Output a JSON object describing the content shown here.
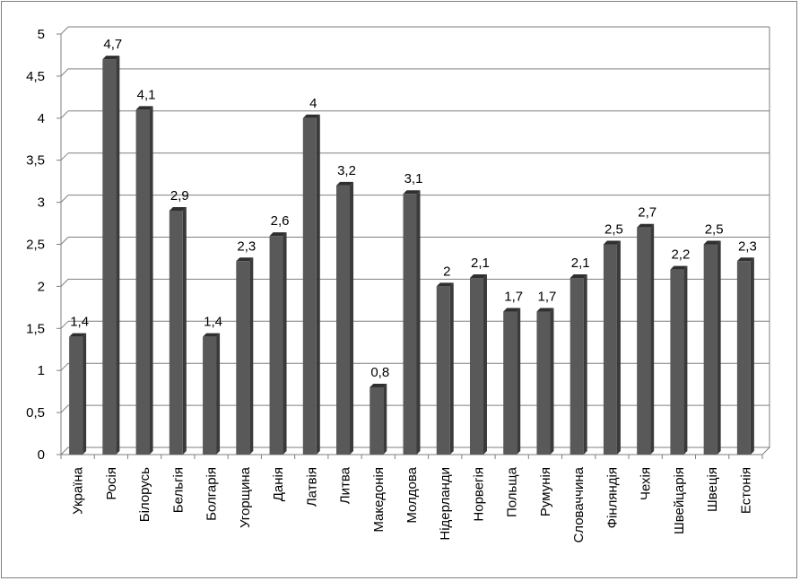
{
  "chart_data": {
    "type": "bar",
    "title": "",
    "xlabel": "",
    "ylabel": "",
    "ylim": [
      0,
      5
    ],
    "yticks": [
      "0",
      "0,5",
      "1",
      "1,5",
      "2",
      "2,5",
      "3",
      "3,5",
      "4",
      "4,5",
      "5"
    ],
    "grid": true,
    "bar_color": "#595959",
    "categories": [
      "Україна",
      "Росія",
      "Білорусь",
      "Бельгія",
      "Болгарія",
      "Угорщина",
      "Данія",
      "Латвія",
      "Литва",
      "Македонія",
      "Молдова",
      "Нідерланди",
      "Норвегія",
      "Польща",
      "Румунія",
      "Словаччина",
      "Фінляндія",
      "Чехія",
      "Швейцарія",
      "Швеція",
      "Естонія"
    ],
    "values": [
      1.4,
      4.7,
      4.1,
      2.9,
      1.4,
      2.3,
      2.6,
      4.0,
      3.2,
      0.8,
      3.1,
      2.0,
      2.1,
      1.7,
      1.7,
      2.1,
      2.5,
      2.7,
      2.2,
      2.5,
      2.3
    ],
    "value_labels": [
      "1,4",
      "4,7",
      "4,1",
      "2,9",
      "1,4",
      "2,3",
      "2,6",
      "4",
      "3,2",
      "0,8",
      "3,1",
      "2",
      "2,1",
      "1,7",
      "1,7",
      "2,1",
      "2,5",
      "2,7",
      "2,2",
      "2,5",
      "2,3"
    ]
  }
}
